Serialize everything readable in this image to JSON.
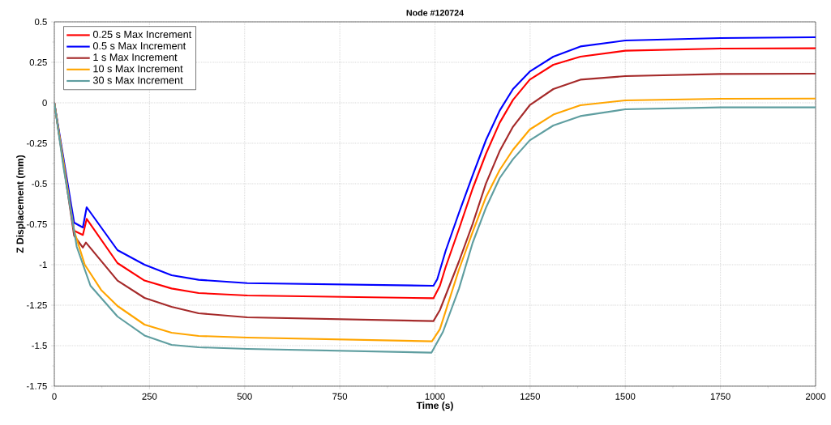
{
  "chart_data": {
    "type": "line",
    "title": "Node #120724",
    "xlabel": "Time (s)",
    "ylabel": "Z Displacement (mm)",
    "xlim": [
      0,
      2000
    ],
    "ylim": [
      -1.75,
      0.5
    ],
    "xticks": [
      0,
      250,
      500,
      750,
      1000,
      1250,
      1500,
      1750,
      2000
    ],
    "yticks": [
      -1.75,
      -1.5,
      -1.25,
      -1,
      -0.75,
      -0.5,
      -0.25,
      0,
      0.25,
      0.5
    ],
    "grid": true,
    "legend": "top left",
    "marker": "none",
    "line_style": "solid",
    "series": [
      {
        "name": "0.25 s Max Increment",
        "color": "#ff0000",
        "x": [
          0,
          52,
          75,
          85,
          166,
          237,
          308,
          379,
          507,
          996,
          1013,
          1028,
          1063,
          1099,
          1134,
          1170,
          1205,
          1249,
          1311,
          1382,
          1500,
          1750,
          2000
        ],
        "values": [
          0,
          -0.79,
          -0.816,
          -0.717,
          -0.99,
          -1.098,
          -1.147,
          -1.175,
          -1.19,
          -1.207,
          -1.13,
          -1.015,
          -0.78,
          -0.53,
          -0.315,
          -0.123,
          0.018,
          0.143,
          0.235,
          0.285,
          0.322,
          0.335,
          0.337
        ]
      },
      {
        "name": "0.5 s Max Increment",
        "color": "#0000ff",
        "x": [
          0,
          52,
          75,
          85,
          166,
          237,
          308,
          379,
          507,
          996,
          1006,
          1028,
          1063,
          1099,
          1134,
          1170,
          1205,
          1249,
          1311,
          1382,
          1500,
          1750,
          2000
        ],
        "values": [
          0,
          -0.74,
          -0.77,
          -0.645,
          -0.91,
          -1.0,
          -1.065,
          -1.093,
          -1.114,
          -1.13,
          -1.09,
          -0.915,
          -0.68,
          -0.448,
          -0.23,
          -0.048,
          0.085,
          0.193,
          0.285,
          0.348,
          0.385,
          0.4,
          0.405
        ]
      },
      {
        "name": "1 s Max Increment",
        "color": "#a52a2a",
        "x": [
          0,
          52,
          75,
          83,
          166,
          237,
          308,
          379,
          507,
          996,
          1013,
          1063,
          1099,
          1134,
          1170,
          1205,
          1249,
          1311,
          1382,
          1500,
          1750,
          2000
        ],
        "values": [
          0,
          -0.82,
          -0.894,
          -0.863,
          -1.098,
          -1.205,
          -1.26,
          -1.3,
          -1.325,
          -1.348,
          -1.28,
          -0.98,
          -0.748,
          -0.498,
          -0.298,
          -0.148,
          -0.015,
          0.085,
          0.143,
          0.165,
          0.178,
          0.18
        ]
      },
      {
        "name": "10 s Max Increment",
        "color": "#ffa500",
        "x": [
          0,
          52,
          80,
          123,
          166,
          237,
          308,
          379,
          507,
          992,
          1013,
          1063,
          1099,
          1134,
          1170,
          1205,
          1249,
          1311,
          1382,
          1500,
          1750,
          2000
        ],
        "values": [
          0,
          -0.79,
          -1.0,
          -1.156,
          -1.255,
          -1.37,
          -1.42,
          -1.44,
          -1.45,
          -1.473,
          -1.398,
          -1.03,
          -0.798,
          -0.582,
          -0.415,
          -0.29,
          -0.165,
          -0.073,
          -0.015,
          0.015,
          0.025,
          0.027
        ]
      },
      {
        "name": "30 s Max Increment",
        "color": "#5f9ea0",
        "x": [
          0,
          25,
          59,
          95,
          166,
          237,
          308,
          379,
          507,
          991,
          1021,
          1063,
          1099,
          1134,
          1170,
          1205,
          1249,
          1311,
          1382,
          1500,
          1750,
          2000
        ],
        "values": [
          0,
          -0.41,
          -0.89,
          -1.13,
          -1.32,
          -1.437,
          -1.495,
          -1.51,
          -1.52,
          -1.543,
          -1.415,
          -1.148,
          -0.865,
          -0.648,
          -0.465,
          -0.348,
          -0.232,
          -0.14,
          -0.082,
          -0.04,
          -0.028,
          -0.028
        ]
      }
    ]
  }
}
